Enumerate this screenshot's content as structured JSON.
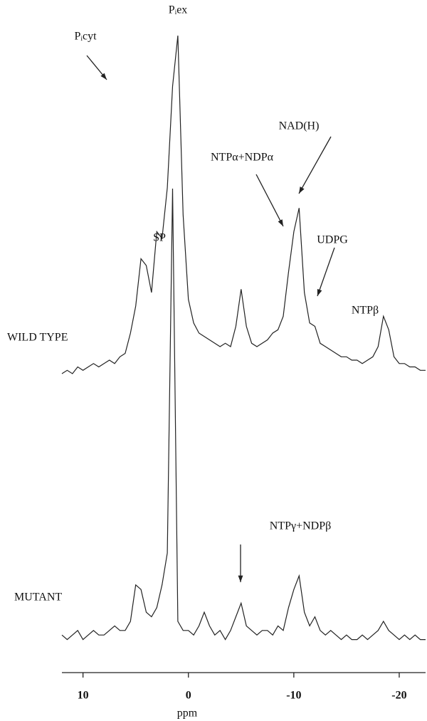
{
  "chart_data": {
    "type": "line",
    "x_label": "ppm",
    "xlim": [
      12,
      -22.5
    ],
    "xticks": [
      10,
      0,
      -10,
      -20
    ],
    "x": [
      12,
      11.5,
      11,
      10.5,
      10,
      9.5,
      9,
      8.5,
      8,
      7.5,
      7,
      6.5,
      6,
      5.5,
      5,
      4.5,
      4,
      3.5,
      3,
      2.5,
      2,
      1.5,
      1,
      0.5,
      0,
      -0.5,
      -1,
      -1.5,
      -2,
      -2.5,
      -3,
      -3.5,
      -4,
      -4.5,
      -5,
      -5.5,
      -6,
      -6.5,
      -7,
      -7.5,
      -8,
      -8.5,
      -9,
      -9.5,
      -10,
      -10.5,
      -11,
      -11.5,
      -12,
      -12.5,
      -13,
      -13.5,
      -14,
      -14.5,
      -15,
      -15.5,
      -16,
      -16.5,
      -17,
      -17.5,
      -18,
      -18.5,
      -19,
      -19.5,
      -20,
      -20.5,
      -21,
      -21.5,
      -22,
      -22.5
    ],
    "series": [
      {
        "name": "WILD TYPE",
        "color": "#222222",
        "ylim": [
          0,
          100
        ],
        "values": [
          0,
          1,
          0,
          2,
          1,
          2,
          3,
          2,
          3,
          4,
          3,
          5,
          6,
          12,
          20,
          34,
          32,
          24,
          42,
          40,
          55,
          85,
          100,
          47,
          22,
          15,
          12,
          11,
          10,
          9,
          8,
          9,
          8,
          14,
          25,
          14,
          9,
          8,
          9,
          10,
          12,
          13,
          17,
          30,
          42,
          49,
          24,
          15,
          14,
          9,
          8,
          7,
          6,
          5,
          5,
          4,
          4,
          3,
          4,
          5,
          8,
          17,
          13,
          5,
          3,
          3,
          2,
          2,
          1,
          1
        ],
        "annotations": [
          "Pᵢex",
          "Pᵢcyt",
          "SP",
          "NTPα+NDPα",
          "NAD(H)",
          "UDPG",
          "NTPβ"
        ]
      },
      {
        "name": "MUTANT",
        "color": "#222222",
        "ylim": [
          0,
          100
        ],
        "values": [
          2,
          1,
          2,
          3,
          1,
          2,
          3,
          2,
          2,
          3,
          4,
          3,
          3,
          5,
          13,
          12,
          7,
          6,
          8,
          13,
          20,
          100,
          5,
          3,
          3,
          2,
          4,
          7,
          4,
          2,
          3,
          1,
          3,
          6,
          9,
          4,
          3,
          2,
          3,
          3,
          2,
          4,
          3,
          8,
          12,
          15,
          7,
          4,
          6,
          3,
          2,
          3,
          2,
          1,
          2,
          1,
          1,
          2,
          1,
          2,
          3,
          5,
          3,
          2,
          1,
          2,
          1,
          2,
          1,
          1
        ],
        "annotations": [
          "NTPγ+NDPβ"
        ]
      }
    ]
  }
}
